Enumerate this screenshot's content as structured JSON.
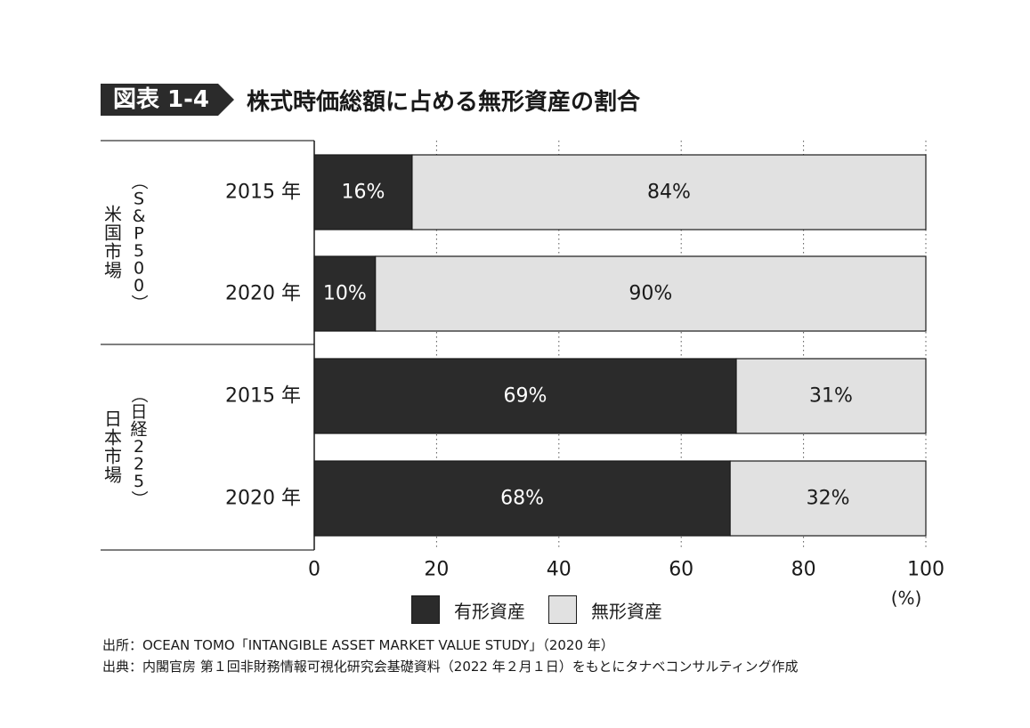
{
  "figure": {
    "label": "図表 1-4",
    "title": "株式時価総額に占める無形資産の割合"
  },
  "groups": [
    {
      "name": "米国市場",
      "sub": "（S&P500）"
    },
    {
      "name": "日本市場",
      "sub": "（日経225）"
    }
  ],
  "chart_data": {
    "type": "bar",
    "orientation": "horizontal",
    "stacked": true,
    "categories": [
      "2015 年",
      "2020 年",
      "2015 年",
      "2020 年"
    ],
    "series": [
      {
        "name": "有形資産",
        "values": [
          16,
          10,
          69,
          68
        ],
        "labels": [
          "16%",
          "10%",
          "69%",
          "68%"
        ],
        "color": "#2b2b2b",
        "label_color": "#ffffff"
      },
      {
        "name": "無形資産",
        "values": [
          84,
          90,
          31,
          32
        ],
        "labels": [
          "84%",
          "90%",
          "31%",
          "32%"
        ],
        "color": "#e1e1e1",
        "label_color": "#1a1a1a"
      }
    ],
    "xlim": [
      0,
      100
    ],
    "xticks": [
      0,
      20,
      40,
      60,
      80,
      100
    ],
    "xunit": "(%)",
    "grid": "vertical"
  },
  "legend": [
    {
      "label": "有形資産",
      "color": "#2b2b2b"
    },
    {
      "label": "無形資産",
      "color": "#e1e1e1"
    }
  ],
  "source": {
    "line1": "出所：OCEAN TOMO「INTANGIBLE ASSET MARKET VALUE STUDY」（2020 年）",
    "line2": "出典：内閣官房 第１回非財務情報可視化研究会基礎資料（2022 年２月１日）をもとにタナベコンサルティング作成"
  }
}
